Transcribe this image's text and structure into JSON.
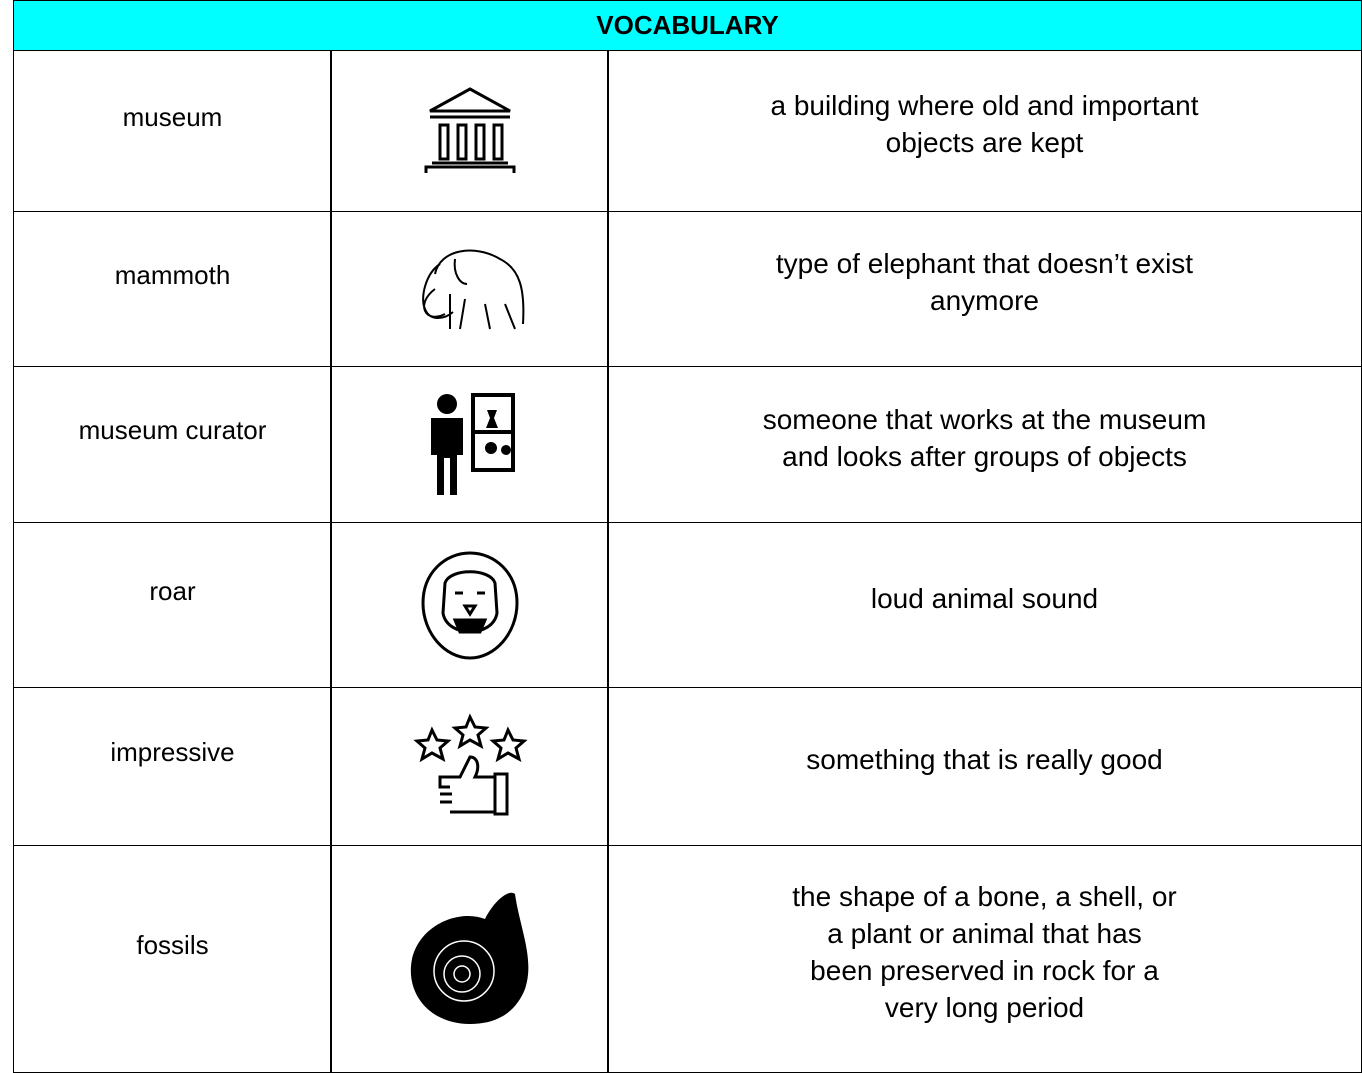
{
  "table": {
    "title": "VOCABULARY",
    "rows": [
      {
        "word": "museum",
        "definition": [
          "a building where old and important",
          "objects are kept"
        ]
      },
      {
        "word": "mammoth",
        "definition": [
          "type of elephant that doesn’t exist",
          "anymore"
        ]
      },
      {
        "word": "museum curator",
        "definition": [
          "someone that works at the museum",
          "and looks after groups of objects"
        ]
      },
      {
        "word": "roar",
        "definition": [
          "loud animal sound"
        ]
      },
      {
        "word": "impressive",
        "definition": [
          "something that is really good"
        ]
      },
      {
        "word": "fossils",
        "definition": [
          "the shape of a bone, a shell, or",
          "a plant or animal that has",
          "been preserved in rock for a",
          "very long period"
        ]
      }
    ]
  }
}
